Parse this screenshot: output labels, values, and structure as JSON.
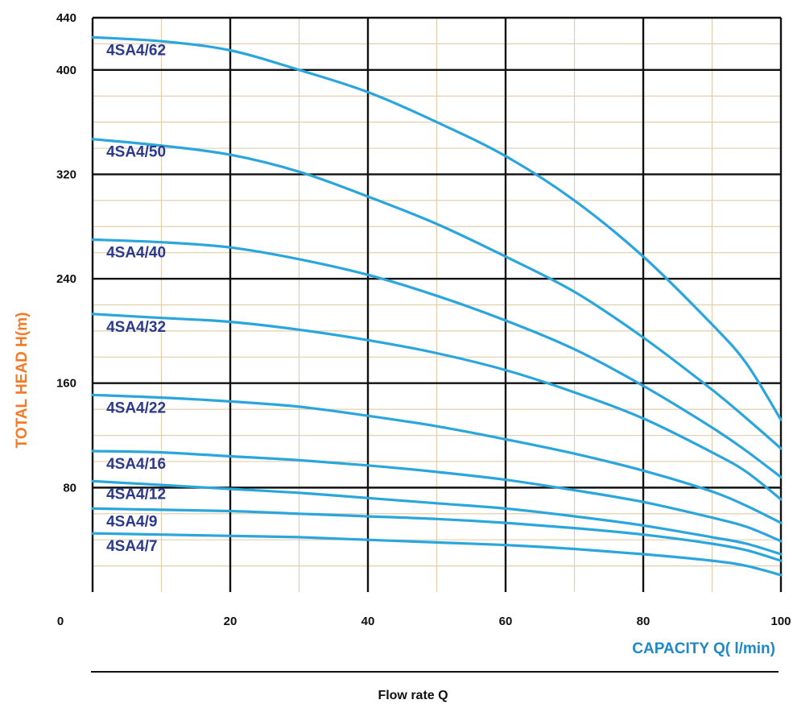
{
  "chart_data": {
    "type": "line",
    "xlabel": "CAPACITY Q( l/min)",
    "ylabel": "TOTAL HEAD H(m)",
    "footer": "Flow rate Q",
    "xlim": [
      0,
      100
    ],
    "ylim": [
      0,
      440
    ],
    "x_ticks": [
      "0",
      "20",
      "40",
      "60",
      "80",
      "100"
    ],
    "y_ticks": [
      "80",
      "160",
      "240",
      "320",
      "400",
      "440"
    ],
    "grid": true,
    "colors": {
      "curve": "#2aa6dc",
      "series_label": "#2b3a8c",
      "ylabel": "#f47a2a",
      "xlabel": "#1e88c8",
      "grid_major": "#111111",
      "grid_minor": "#e3cfae"
    },
    "series": [
      {
        "name": "4SA4/62",
        "x": [
          0,
          10,
          20,
          30,
          40,
          50,
          60,
          70,
          80,
          90,
          95,
          100
        ],
        "y": [
          425,
          422,
          415,
          400,
          383,
          360,
          334,
          300,
          257,
          205,
          175,
          132
        ]
      },
      {
        "name": "4SA4/50",
        "x": [
          0,
          10,
          20,
          30,
          40,
          50,
          60,
          70,
          80,
          90,
          95,
          100
        ],
        "y": [
          347,
          342,
          335,
          322,
          303,
          282,
          257,
          230,
          195,
          155,
          133,
          110
        ]
      },
      {
        "name": "4SA4/40",
        "x": [
          0,
          10,
          20,
          30,
          40,
          50,
          60,
          70,
          80,
          90,
          95,
          100
        ],
        "y": [
          270,
          268,
          264,
          255,
          243,
          227,
          208,
          186,
          158,
          126,
          108,
          88
        ]
      },
      {
        "name": "4SA4/32",
        "x": [
          0,
          10,
          20,
          30,
          40,
          50,
          60,
          70,
          80,
          90,
          95,
          100
        ],
        "y": [
          213,
          210,
          207,
          201,
          193,
          183,
          170,
          153,
          133,
          107,
          92,
          71
        ]
      },
      {
        "name": "4SA4/22",
        "x": [
          0,
          10,
          20,
          30,
          40,
          50,
          60,
          70,
          80,
          90,
          95,
          100
        ],
        "y": [
          151,
          149,
          146,
          142,
          135,
          127,
          117,
          106,
          93,
          77,
          66,
          53
        ]
      },
      {
        "name": "4SA4/16",
        "x": [
          0,
          10,
          20,
          30,
          40,
          50,
          60,
          70,
          80,
          90,
          95,
          100
        ],
        "y": [
          108,
          107,
          104,
          101,
          97,
          92,
          86,
          78,
          69,
          57,
          50,
          39
        ]
      },
      {
        "name": "4SA4/12",
        "x": [
          0,
          10,
          20,
          30,
          40,
          50,
          60,
          70,
          80,
          90,
          95,
          100
        ],
        "y": [
          85,
          82,
          79,
          76,
          72,
          68,
          64,
          58,
          51,
          42,
          37,
          29
        ]
      },
      {
        "name": "4SA4/9",
        "x": [
          0,
          10,
          20,
          30,
          40,
          50,
          60,
          70,
          80,
          90,
          95,
          100
        ],
        "y": [
          64,
          63,
          62,
          60,
          58,
          56,
          53,
          49,
          44,
          37,
          32,
          24
        ]
      },
      {
        "name": "4SA4/7",
        "x": [
          0,
          10,
          20,
          30,
          40,
          50,
          60,
          70,
          80,
          90,
          95,
          100
        ],
        "y": [
          45,
          44,
          43,
          42,
          40,
          38,
          36,
          33,
          29,
          24,
          20,
          13
        ]
      }
    ]
  }
}
